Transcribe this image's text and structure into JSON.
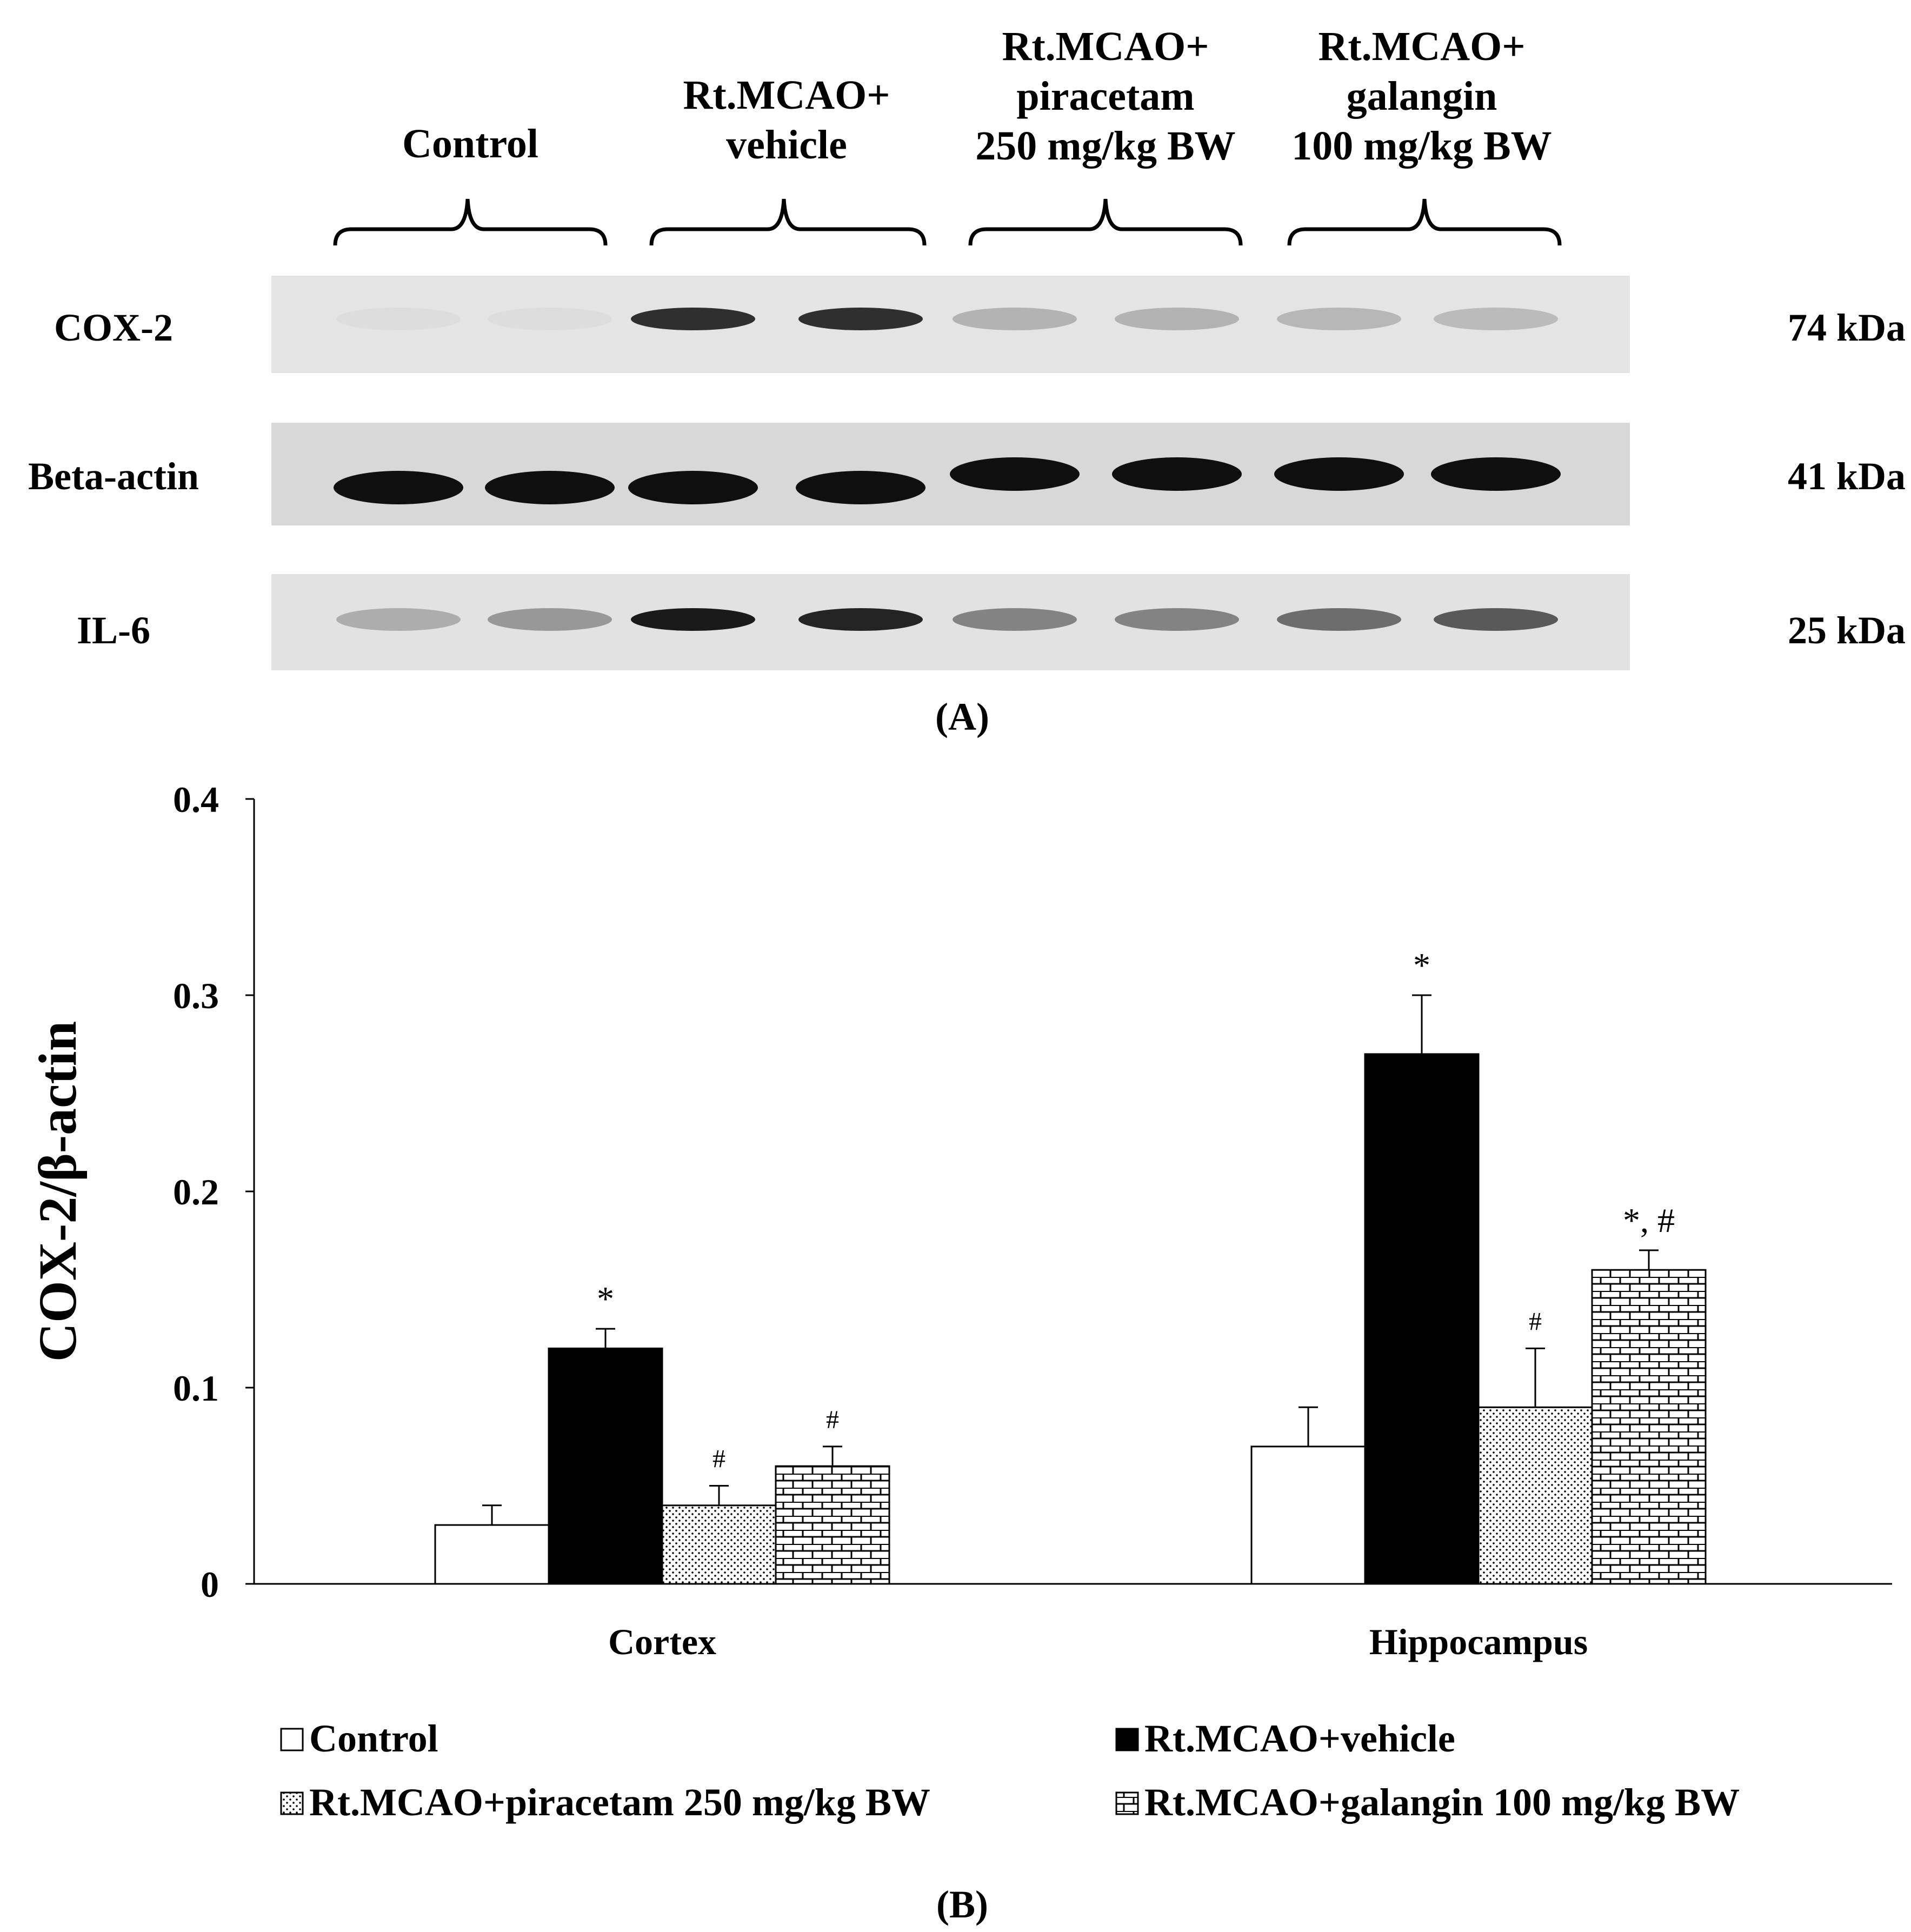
{
  "panel_a": {
    "label": "(A)",
    "groups": [
      {
        "lines": [
          "Control"
        ]
      },
      {
        "lines": [
          "Rt.MCAO+",
          "vehicle"
        ]
      },
      {
        "lines": [
          "Rt.MCAO+",
          "piracetam",
          "250 mg/kg BW"
        ]
      },
      {
        "lines": [
          "Rt.MCAO+",
          "galangin",
          "100 mg/kg BW"
        ]
      }
    ],
    "rows": [
      {
        "protein": "COX-2",
        "size": "74 kDa",
        "intensity": [
          0.02,
          0.02,
          0.85,
          0.85,
          0.22,
          0.22,
          0.2,
          0.18
        ]
      },
      {
        "protein": "Beta-actin",
        "size": "41 kDa",
        "intensity": [
          1.0,
          1.0,
          1.0,
          1.0,
          1.0,
          1.0,
          1.0,
          1.0
        ]
      },
      {
        "protein": "IL-6",
        "size": "25 kDa",
        "intensity": [
          0.25,
          0.35,
          0.95,
          0.9,
          0.45,
          0.45,
          0.55,
          0.65
        ]
      }
    ]
  },
  "panel_b": {
    "label": "(B)"
  },
  "chart_data": {
    "type": "bar",
    "categories": [
      "Cortex",
      "Hippocampus"
    ],
    "ylabel": "COX-2/β-actin",
    "ylim": [
      0,
      0.4
    ],
    "yticks": [
      "0",
      "0.1",
      "0.2",
      "0.3",
      "0.4"
    ],
    "grid": false,
    "legend_position": "bottom",
    "series": [
      {
        "name": "Control",
        "fill": "white",
        "values": [
          0.03,
          0.07
        ],
        "errors": [
          0.01,
          0.02
        ],
        "marks": [
          "",
          ""
        ]
      },
      {
        "name": "Rt.MCAO+vehicle",
        "fill": "black",
        "values": [
          0.12,
          0.27
        ],
        "errors": [
          0.01,
          0.03
        ],
        "marks": [
          "*",
          "*"
        ]
      },
      {
        "name": "Rt.MCAO+piracetam 250 mg/kg BW",
        "fill": "dots",
        "values": [
          0.04,
          0.09
        ],
        "errors": [
          0.01,
          0.03
        ],
        "marks": [
          "#",
          "#"
        ]
      },
      {
        "name": "Rt.MCAO+galangin 100 mg/kg BW",
        "fill": "bricks",
        "values": [
          0.06,
          0.16
        ],
        "errors": [
          0.01,
          0.01
        ],
        "marks": [
          "#",
          "*, #"
        ]
      }
    ]
  }
}
